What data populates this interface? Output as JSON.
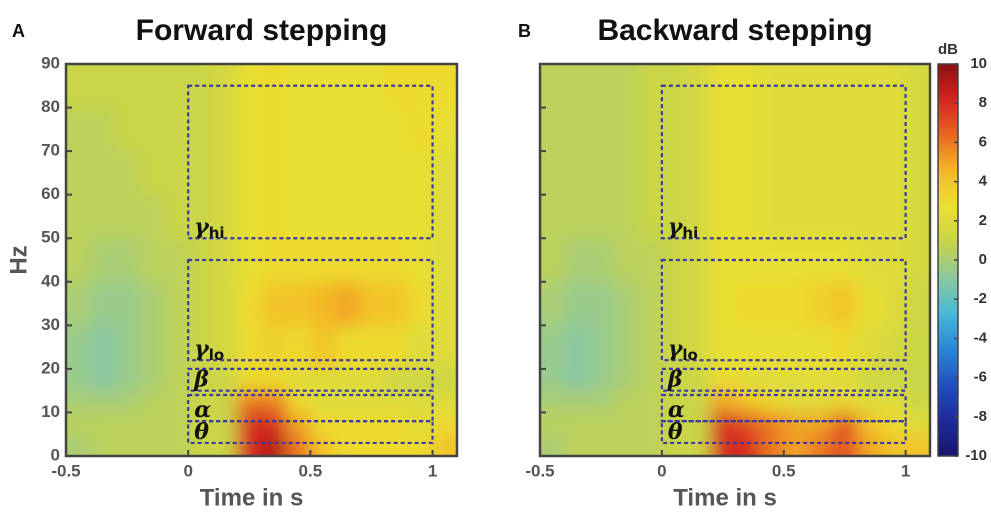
{
  "chart_data": [
    {
      "type": "heatmap",
      "panel": "A",
      "title": "Forward stepping",
      "x_label": "Time in s",
      "y_label": "Hz",
      "xlim": [
        -0.5,
        1.1
      ],
      "ylim": [
        0,
        90
      ],
      "xticks": [
        -0.5,
        0,
        0.5,
        1
      ],
      "yticks": [
        0,
        10,
        20,
        30,
        40,
        50,
        60,
        70,
        80,
        90
      ],
      "xbins": [
        -0.5,
        -0.4,
        -0.3,
        -0.2,
        -0.1,
        0,
        0.1,
        0.2,
        0.3,
        0.4,
        0.5,
        0.6,
        0.7,
        0.8,
        0.9,
        1.0,
        1.1
      ],
      "ybins": [
        0,
        5,
        10,
        15,
        20,
        30,
        40,
        50,
        60,
        70,
        80,
        90
      ],
      "values": [
        [
          0,
          0.5,
          0.5,
          0.5,
          0.5,
          1,
          1,
          8,
          9,
          6,
          4,
          3,
          3,
          3,
          3,
          4
        ],
        [
          0.5,
          0.5,
          0.5,
          0.5,
          0.5,
          1,
          1,
          8,
          8,
          5,
          3,
          3,
          3,
          3,
          2,
          3
        ],
        [
          0,
          0,
          0,
          0.5,
          0.5,
          1,
          1,
          6,
          6,
          3,
          2,
          2,
          2,
          2,
          2,
          2
        ],
        [
          -0.5,
          -1,
          -0.5,
          0,
          0.5,
          1,
          1,
          3,
          3,
          2,
          2,
          2,
          2,
          1,
          1,
          1
        ],
        [
          -0.5,
          -1,
          -0.5,
          0,
          0.5,
          1,
          1.5,
          3,
          3.5,
          3,
          4,
          3,
          3,
          3,
          2,
          2
        ],
        [
          0,
          -0.5,
          -0.5,
          0,
          0.5,
          1,
          1.5,
          3,
          4,
          4,
          4.5,
          5,
          4,
          4,
          3,
          2
        ],
        [
          0.5,
          0,
          0,
          0.5,
          0.5,
          1,
          1.5,
          2.5,
          3,
          3,
          3,
          3,
          3,
          3,
          2.5,
          2
        ],
        [
          0.5,
          0.5,
          0.5,
          0.5,
          1,
          1,
          1.5,
          2.5,
          3,
          2.5,
          2.5,
          2.5,
          2.5,
          2.5,
          2.5,
          2
        ],
        [
          0.5,
          0.5,
          0.5,
          1,
          1,
          1,
          1.5,
          2.5,
          3,
          2.5,
          2.5,
          2.5,
          2.5,
          2.5,
          2.5,
          2
        ],
        [
          0.5,
          0.5,
          1,
          1,
          1,
          1,
          1.5,
          2.5,
          3,
          2.5,
          2.5,
          2.5,
          2.5,
          2.5,
          3,
          2.5
        ],
        [
          1,
          1,
          1,
          1,
          1,
          1,
          1.5,
          2.5,
          3,
          2.5,
          2.5,
          2.5,
          2.5,
          3,
          3,
          3
        ]
      ],
      "regions": [
        {
          "symbol": "γ",
          "sub": "hi",
          "x": [
            0,
            1
          ],
          "y": [
            50,
            85
          ]
        },
        {
          "symbol": "γ",
          "sub": "lo",
          "x": [
            0,
            1
          ],
          "y": [
            22,
            45
          ]
        },
        {
          "symbol": "β",
          "x": [
            0,
            1
          ],
          "y": [
            15,
            20
          ]
        },
        {
          "symbol": "α",
          "x": [
            0,
            1
          ],
          "y": [
            8,
            14
          ]
        },
        {
          "symbol": "θ",
          "x": [
            0,
            1
          ],
          "y": [
            3,
            8
          ]
        }
      ],
      "region_color": "#3a3aa0",
      "clim": [
        -10,
        10
      ],
      "colormap": [
        "#16166e",
        "#1e2a9c",
        "#2050c0",
        "#2a86d6",
        "#48b8d8",
        "#8cc8a0",
        "#c8d448",
        "#ece030",
        "#f4b828",
        "#e86820",
        "#d42420",
        "#8c1010"
      ]
    },
    {
      "type": "heatmap",
      "panel": "B",
      "title": "Backward stepping",
      "x_label": "Time in s",
      "xlim": [
        -0.5,
        1.1
      ],
      "ylim": [
        0,
        90
      ],
      "xticks": [
        -0.5,
        0,
        0.5,
        1
      ],
      "xbins": [
        -0.5,
        -0.4,
        -0.3,
        -0.2,
        -0.1,
        0,
        0.1,
        0.2,
        0.3,
        0.4,
        0.5,
        0.6,
        0.7,
        0.8,
        0.9,
        1.0,
        1.1
      ],
      "ybins": [
        0,
        5,
        10,
        15,
        20,
        30,
        40,
        50,
        60,
        70,
        80,
        90
      ],
      "values": [
        [
          0,
          0.5,
          0.5,
          0.5,
          0.5,
          1,
          1,
          8,
          8,
          6,
          5,
          6,
          7,
          5,
          4,
          4
        ],
        [
          0.5,
          0.5,
          0.5,
          0.5,
          0.5,
          1,
          1,
          8,
          7,
          6,
          5,
          5,
          7,
          4,
          3,
          2
        ],
        [
          0,
          0,
          0,
          0.5,
          0.5,
          1,
          1,
          5,
          4,
          3,
          2,
          2,
          3,
          2,
          2,
          1
        ],
        [
          -0.5,
          -1,
          -0.5,
          0,
          0.5,
          1,
          1,
          3,
          2,
          2,
          2,
          2,
          2,
          1,
          1,
          1
        ],
        [
          -0.5,
          -1,
          -0.5,
          0,
          0.5,
          1,
          1.5,
          2.5,
          2.5,
          2.5,
          2.5,
          2.5,
          3,
          2,
          1.5,
          1
        ],
        [
          0,
          -0.5,
          -0.5,
          0,
          0.5,
          1,
          1.5,
          2.5,
          3,
          3,
          3,
          3.5,
          4,
          2.5,
          2,
          1
        ],
        [
          0.5,
          0,
          0,
          0.5,
          0.5,
          1,
          1.5,
          2.5,
          2.5,
          2.5,
          2.5,
          2.5,
          2.5,
          2,
          2,
          1.5
        ],
        [
          0.5,
          0.5,
          0.5,
          0.5,
          1,
          1,
          1.5,
          2.5,
          2.5,
          2,
          2,
          2,
          2,
          2,
          2,
          1.5
        ],
        [
          0.5,
          0.5,
          0.5,
          0.5,
          1,
          1,
          1.5,
          2.5,
          2.5,
          2,
          2,
          2,
          2,
          2,
          2,
          1.5
        ],
        [
          0.5,
          0.5,
          0.5,
          0.5,
          1,
          1,
          1.5,
          2.5,
          2.5,
          2,
          2,
          2,
          2,
          2,
          2,
          1.5
        ],
        [
          0.5,
          0.5,
          0.5,
          0.5,
          1,
          1,
          1.5,
          2.5,
          2.5,
          2,
          2,
          2,
          2,
          2,
          2,
          1.5
        ]
      ],
      "regions": [
        {
          "symbol": "γ",
          "sub": "hi",
          "x": [
            0,
            1
          ],
          "y": [
            50,
            85
          ]
        },
        {
          "symbol": "γ",
          "sub": "lo",
          "x": [
            0,
            1
          ],
          "y": [
            22,
            45
          ]
        },
        {
          "symbol": "β",
          "x": [
            0,
            1
          ],
          "y": [
            15,
            20
          ]
        },
        {
          "symbol": "α",
          "x": [
            0,
            1
          ],
          "y": [
            8,
            14
          ]
        },
        {
          "symbol": "θ",
          "x": [
            0,
            1
          ],
          "y": [
            3,
            8
          ]
        }
      ],
      "region_color": "#3a3aa0",
      "clim": [
        -10,
        10
      ],
      "colormap": [
        "#16166e",
        "#1e2a9c",
        "#2050c0",
        "#2a86d6",
        "#48b8d8",
        "#8cc8a0",
        "#c8d448",
        "#ece030",
        "#f4b828",
        "#e86820",
        "#d42420",
        "#8c1010"
      ],
      "colorbar": {
        "label": "dB",
        "ticks": [
          -10,
          -8,
          -6,
          -4,
          -2,
          0,
          2,
          4,
          6,
          8,
          10
        ]
      }
    }
  ]
}
